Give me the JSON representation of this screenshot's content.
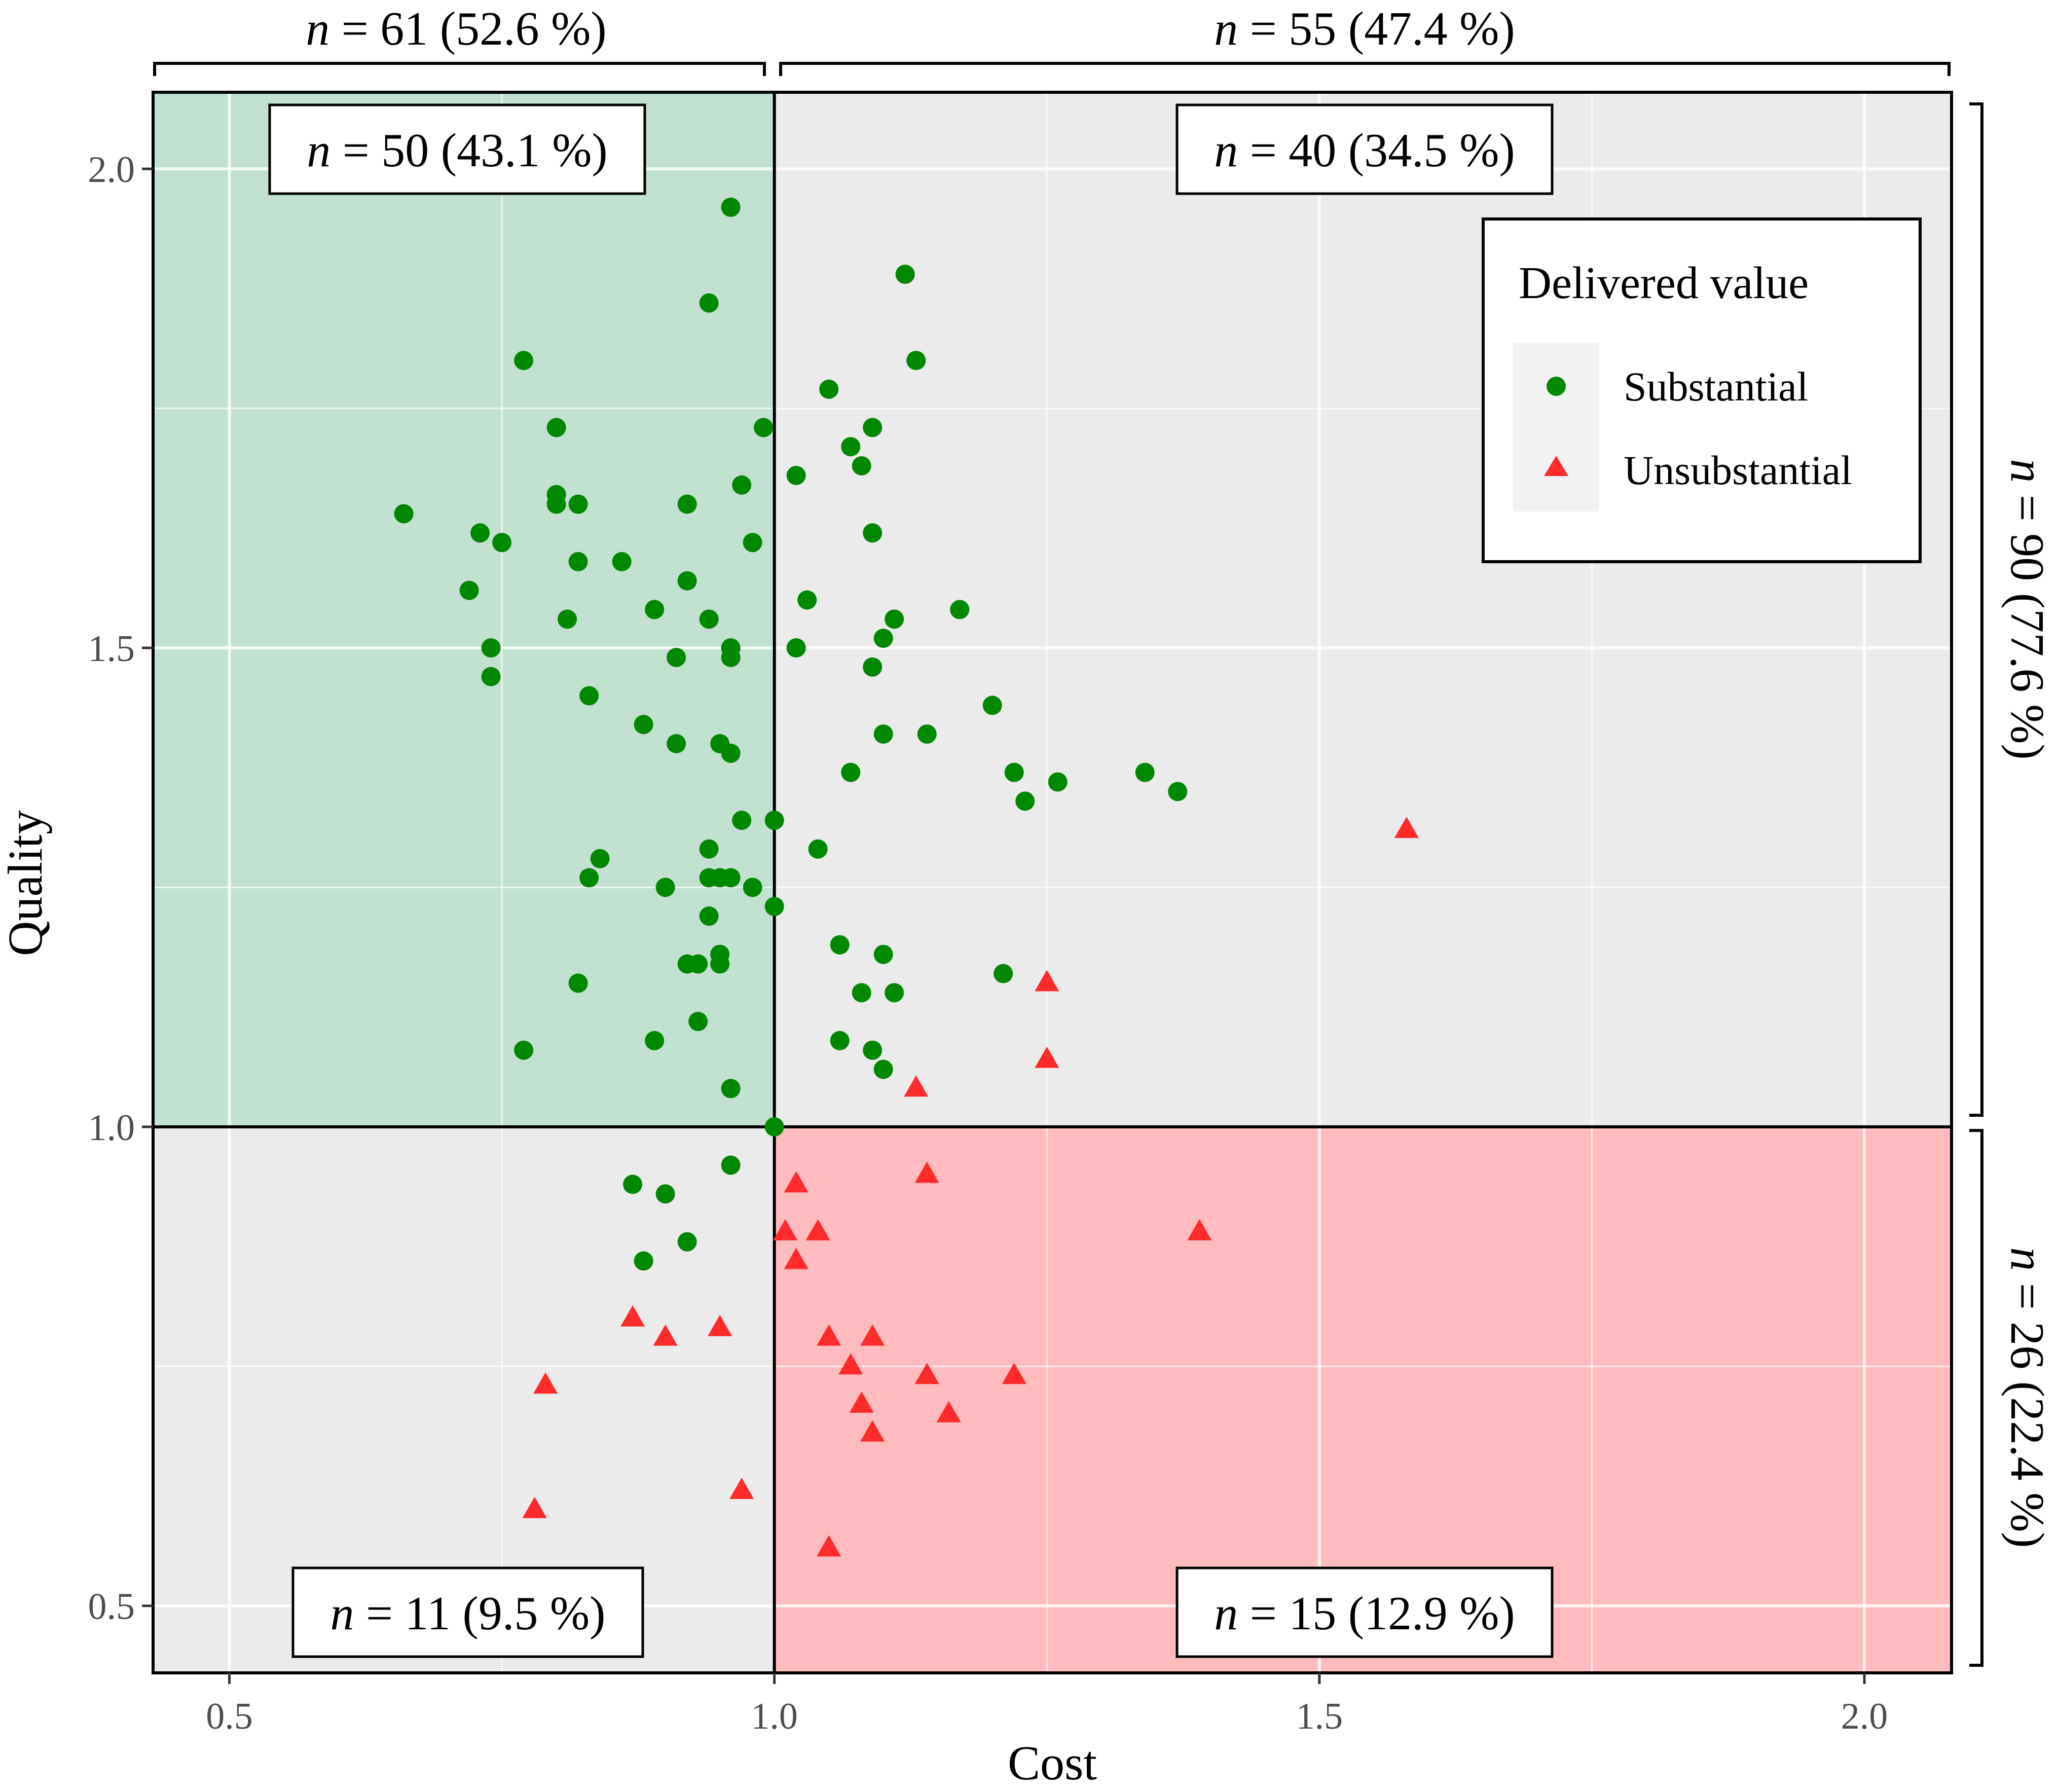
{
  "chart_data": {
    "type": "scatter",
    "xlabel": "Cost",
    "ylabel": "Quality",
    "xlim": [
      0.43,
      2.08
    ],
    "ylim": [
      0.43,
      2.08
    ],
    "x_ticks": [
      "0.5",
      "1.0",
      "1.5",
      "2.0"
    ],
    "y_ticks": [
      "0.5",
      "1.0",
      "1.5",
      "2.0"
    ],
    "grid": true,
    "thresholds": {
      "x": 1.0,
      "y": 1.0
    },
    "legend": {
      "title": "Delivered value",
      "position": "top-right",
      "entries": [
        {
          "label": "Substantial",
          "color": "#008800",
          "shape": "circle"
        },
        {
          "label": "Unsubstantial",
          "color": "#ff2a2a",
          "shape": "triangle"
        }
      ]
    },
    "quadrant_counts": {
      "top_left": {
        "n": "50",
        "pct": "(43.1 %)"
      },
      "top_right": {
        "n": "40",
        "pct": "(34.5 %)"
      },
      "bottom_left": {
        "n": "11",
        "pct": "(9.5 %)"
      },
      "bottom_right": {
        "n": "15",
        "pct": "(12.9 %)"
      }
    },
    "marginal_counts": {
      "left": {
        "n": "61",
        "pct": "(52.6 %)"
      },
      "right": {
        "n": "55",
        "pct": "(47.4 %)"
      },
      "top": {
        "n": "90",
        "pct": "(77.6 %)"
      },
      "bottom": {
        "n": "26",
        "pct": "(22.4 %)"
      }
    },
    "quadrant_fills": {
      "top_left": "#c3e1d0",
      "bottom_right": "#ffbbbe",
      "other": "#ebebeb"
    },
    "series": [
      {
        "name": "Substantial",
        "points": [
          [
            0.96,
            1.96
          ],
          [
            0.94,
            1.86
          ],
          [
            0.77,
            1.8
          ],
          [
            0.8,
            1.73
          ],
          [
            0.99,
            1.73
          ],
          [
            0.66,
            1.64
          ],
          [
            0.8,
            1.66
          ],
          [
            0.8,
            1.65
          ],
          [
            0.82,
            1.65
          ],
          [
            0.92,
            1.65
          ],
          [
            0.97,
            1.67
          ],
          [
            0.73,
            1.62
          ],
          [
            0.75,
            1.61
          ],
          [
            0.98,
            1.61
          ],
          [
            0.82,
            1.59
          ],
          [
            0.86,
            1.59
          ],
          [
            0.72,
            1.56
          ],
          [
            0.92,
            1.57
          ],
          [
            0.81,
            1.53
          ],
          [
            0.89,
            1.54
          ],
          [
            0.94,
            1.53
          ],
          [
            0.74,
            1.5
          ],
          [
            0.96,
            1.5
          ],
          [
            0.91,
            1.49
          ],
          [
            0.96,
            1.49
          ],
          [
            0.74,
            1.47
          ],
          [
            0.83,
            1.45
          ],
          [
            0.88,
            1.42
          ],
          [
            0.91,
            1.4
          ],
          [
            0.95,
            1.4
          ],
          [
            0.96,
            1.39
          ],
          [
            0.97,
            1.32
          ],
          [
            0.94,
            1.29
          ],
          [
            0.84,
            1.28
          ],
          [
            0.83,
            1.26
          ],
          [
            0.94,
            1.26
          ],
          [
            0.95,
            1.26
          ],
          [
            0.96,
            1.26
          ],
          [
            0.9,
            1.25
          ],
          [
            0.98,
            1.25
          ],
          [
            0.94,
            1.22
          ],
          [
            0.95,
            1.18
          ],
          [
            0.93,
            1.17
          ],
          [
            0.95,
            1.17
          ],
          [
            0.92,
            1.17
          ],
          [
            0.82,
            1.15
          ],
          [
            0.93,
            1.11
          ],
          [
            0.89,
            1.09
          ],
          [
            0.77,
            1.08
          ],
          [
            0.96,
            1.04
          ],
          [
            1.12,
            1.89
          ],
          [
            1.13,
            1.8
          ],
          [
            1.05,
            1.77
          ],
          [
            1.09,
            1.73
          ],
          [
            1.07,
            1.71
          ],
          [
            1.08,
            1.69
          ],
          [
            1.02,
            1.68
          ],
          [
            1.09,
            1.62
          ],
          [
            1.03,
            1.55
          ],
          [
            1.11,
            1.53
          ],
          [
            1.17,
            1.54
          ],
          [
            1.1,
            1.51
          ],
          [
            1.02,
            1.5
          ],
          [
            1.09,
            1.48
          ],
          [
            1.2,
            1.44
          ],
          [
            1.14,
            1.41
          ],
          [
            1.1,
            1.41
          ],
          [
            1.07,
            1.37
          ],
          [
            1.22,
            1.37
          ],
          [
            1.34,
            1.37
          ],
          [
            1.26,
            1.36
          ],
          [
            1.37,
            1.35
          ],
          [
            1.23,
            1.34
          ],
          [
            1.0,
            1.32
          ],
          [
            1.04,
            1.29
          ],
          [
            1.0,
            1.23
          ],
          [
            1.06,
            1.19
          ],
          [
            1.1,
            1.18
          ],
          [
            1.21,
            1.16
          ],
          [
            1.08,
            1.14
          ],
          [
            1.11,
            1.14
          ],
          [
            1.06,
            1.09
          ],
          [
            1.09,
            1.08
          ],
          [
            1.1,
            1.06
          ],
          [
            1.0,
            1.0
          ],
          [
            0.96,
            0.96
          ],
          [
            0.87,
            0.94
          ],
          [
            0.9,
            0.93
          ],
          [
            0.92,
            0.88
          ],
          [
            0.88,
            0.86
          ]
        ]
      },
      {
        "name": "Unsubstantial",
        "points": [
          [
            1.58,
            1.31
          ],
          [
            1.25,
            1.15
          ],
          [
            1.25,
            1.07
          ],
          [
            1.13,
            1.04
          ],
          [
            0.87,
            0.8
          ],
          [
            0.95,
            0.79
          ],
          [
            0.9,
            0.78
          ],
          [
            0.79,
            0.73
          ],
          [
            0.78,
            0.6
          ],
          [
            0.97,
            0.62
          ],
          [
            1.14,
            0.95
          ],
          [
            1.02,
            0.94
          ],
          [
            1.39,
            0.89
          ],
          [
            1.04,
            0.89
          ],
          [
            1.01,
            0.89
          ],
          [
            1.02,
            0.86
          ],
          [
            1.05,
            0.78
          ],
          [
            1.09,
            0.78
          ],
          [
            1.07,
            0.75
          ],
          [
            1.14,
            0.74
          ],
          [
            1.22,
            0.74
          ],
          [
            1.08,
            0.71
          ],
          [
            1.16,
            0.7
          ],
          [
            1.09,
            0.68
          ],
          [
            1.05,
            0.56
          ]
        ]
      }
    ]
  }
}
